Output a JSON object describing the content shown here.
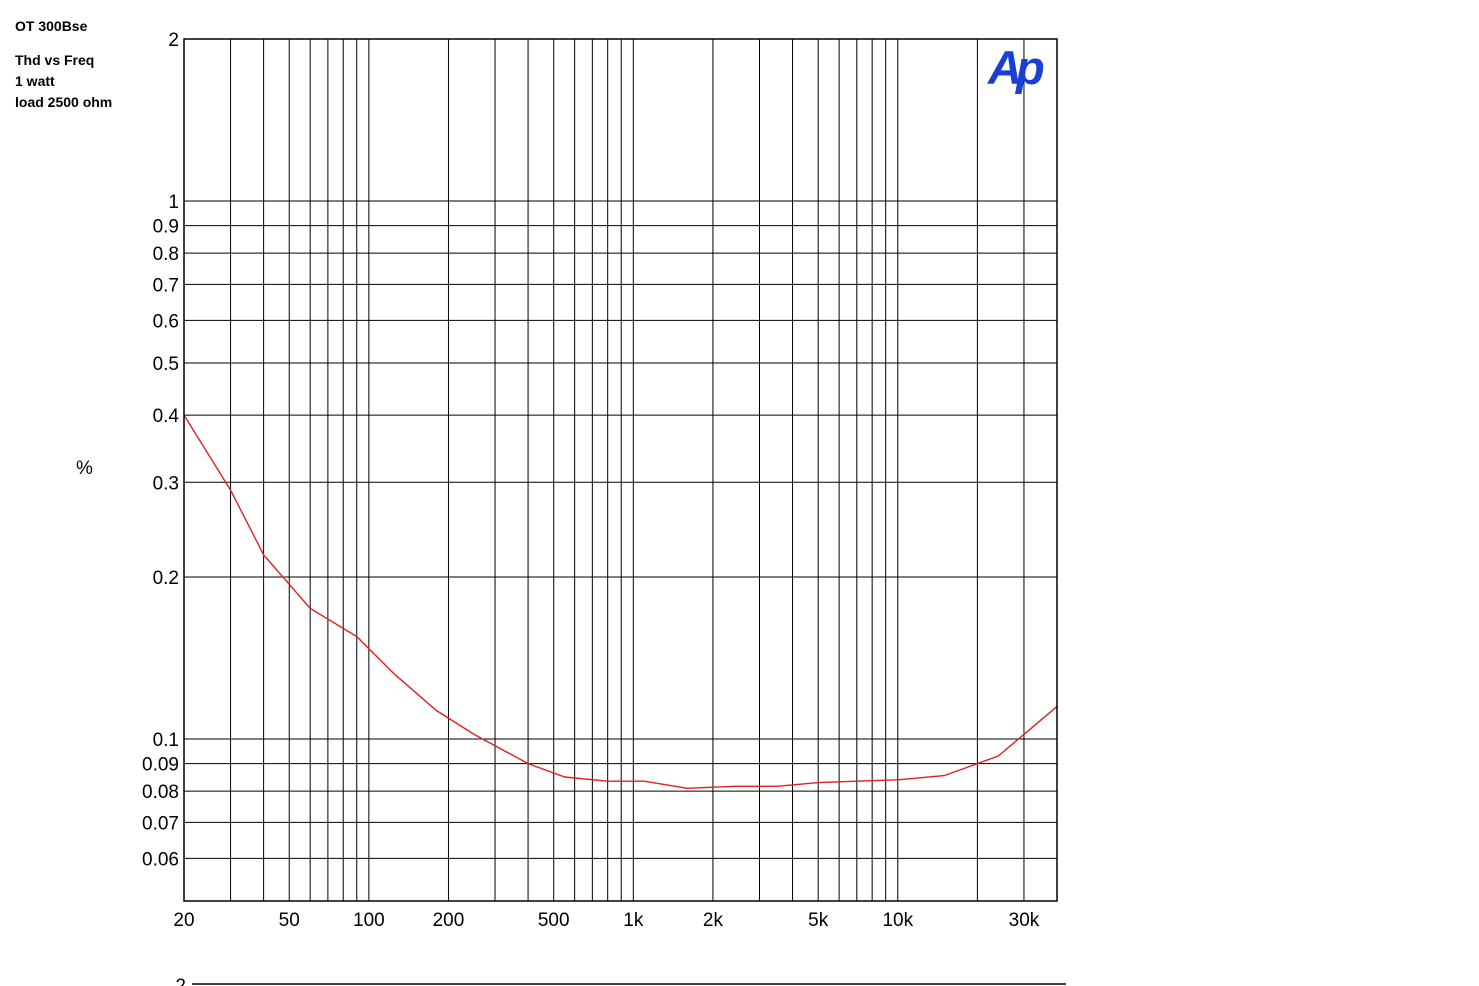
{
  "header": {
    "title": "OT 300Bse",
    "subtitle_lines": [
      "Thd vs Freq",
      "1 watt",
      "load 2500 ohm"
    ]
  },
  "logo": {
    "text": "Ap",
    "color": "#1a3fd6"
  },
  "colors": {
    "trace": "#e02020",
    "grid": "#000000"
  },
  "second_chart_stub": {
    "tick_label": "2"
  },
  "chart_data": {
    "type": "line",
    "title": "OT 300Bse",
    "subtitle": [
      "Thd vs Freq",
      "1 watt",
      "load 2500 ohm"
    ],
    "xlabel": "",
    "ylabel": "%",
    "xscale": "log",
    "yscale": "log",
    "xlim": [
      20,
      40000
    ],
    "ylim": [
      0.05,
      2
    ],
    "grid": true,
    "x_ticks": [
      20,
      50,
      100,
      200,
      500,
      1000,
      2000,
      5000,
      10000,
      30000
    ],
    "x_tick_labels": [
      "20",
      "50",
      "100",
      "200",
      "500",
      "1k",
      "2k",
      "5k",
      "10k",
      "30k"
    ],
    "y_ticks": [
      2,
      1,
      0.9,
      0.8,
      0.7,
      0.6,
      0.5,
      0.4,
      0.3,
      0.2,
      0.1,
      0.09,
      0.08,
      0.07,
      0.06
    ],
    "y_tick_labels": [
      "2",
      "1",
      "0.9",
      "0.8",
      "0.7",
      "0.6",
      "0.5",
      "0.4",
      "0.3",
      "0.2",
      "0.1",
      "0.09",
      "0.08",
      "0.07",
      "0.06"
    ],
    "series": [
      {
        "color": "#e02020",
        "x": [
          20,
          30,
          40,
          60,
          90,
          125,
          180,
          250,
          400,
          550,
          800,
          1100,
          1600,
          2400,
          3500,
          5000,
          7000,
          10000,
          15000,
          24000,
          40000
        ],
        "values": [
          0.4,
          0.29,
          0.22,
          0.175,
          0.155,
          0.132,
          0.113,
          0.102,
          0.09,
          0.085,
          0.0835,
          0.0835,
          0.081,
          0.0817,
          0.0817,
          0.083,
          0.0835,
          0.084,
          0.0855,
          0.093,
          0.115
        ]
      }
    ]
  }
}
